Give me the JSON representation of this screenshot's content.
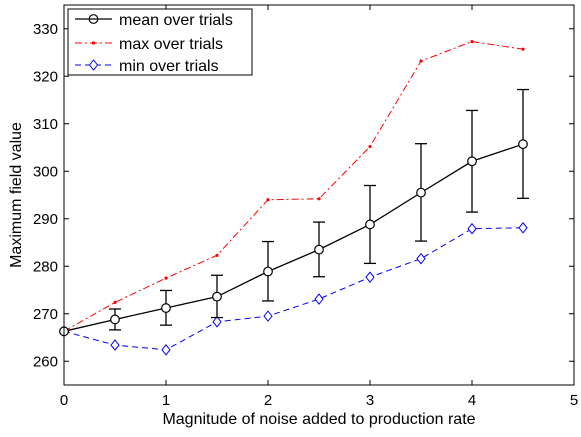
{
  "chart_data": {
    "type": "line",
    "xlabel": "Magnitude of noise added to production rate",
    "ylabel": "Maximum field value",
    "xlim": [
      0,
      5
    ],
    "ylim": [
      255,
      335
    ],
    "x_ticks": [
      "0",
      "1",
      "2",
      "3",
      "4",
      "5"
    ],
    "y_ticks": [
      "260",
      "270",
      "280",
      "290",
      "300",
      "310",
      "320",
      "330"
    ],
    "grid": false,
    "legend_position": "top-left",
    "x": [
      0,
      0.5,
      1,
      1.5,
      2,
      2.5,
      3,
      3.5,
      4,
      4.5
    ],
    "series": [
      {
        "name": "mean over trials",
        "color": "#000000",
        "marker": "circle",
        "line_style": "solid",
        "values": [
          266.3,
          268.8,
          271.2,
          273.6,
          278.9,
          283.5,
          288.8,
          295.5,
          302.1,
          305.7
        ],
        "err_low": [
          266.3,
          266.6,
          267.6,
          269.2,
          272.7,
          277.8,
          280.6,
          285.3,
          291.4,
          294.3
        ],
        "err_high": [
          266.3,
          271.0,
          274.9,
          278.1,
          285.2,
          289.3,
          297.0,
          305.8,
          312.8,
          317.2
        ]
      },
      {
        "name": "max over trials",
        "color": "#ff0000",
        "marker": "dot",
        "line_style": "dashdot",
        "values": [
          266.3,
          272.4,
          277.5,
          282.3,
          294.0,
          294.2,
          305.2,
          323.2,
          327.3,
          325.7
        ]
      },
      {
        "name": "min over trials",
        "color": "#0000ff",
        "marker": "diamond",
        "line_style": "dashed",
        "values": [
          266.3,
          263.4,
          262.4,
          268.3,
          269.5,
          273.1,
          277.7,
          281.6,
          287.9,
          288.1
        ]
      }
    ]
  }
}
